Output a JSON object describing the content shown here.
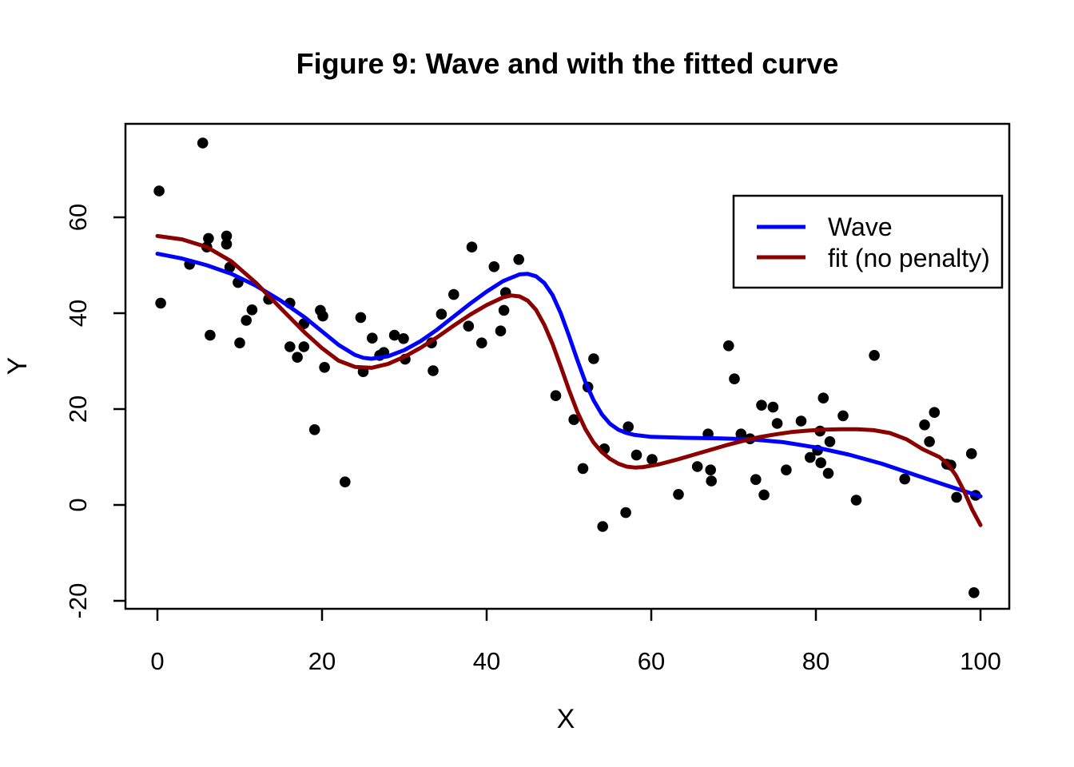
{
  "chart_data": {
    "type": "scatter",
    "title": "Figure 9: Wave and with the fitted curve",
    "xlabel": "X",
    "ylabel": "Y",
    "x_ticks": [
      0,
      20,
      40,
      60,
      80,
      100
    ],
    "y_ticks": [
      -20,
      0,
      20,
      40,
      60
    ],
    "xlim": [
      -3.9,
      103.5
    ],
    "ylim": [
      -21.7,
      79.5
    ],
    "grid": false,
    "point_color": "#000000",
    "background_color": "#ffffff",
    "points": [
      [
        0.2,
        65.5
      ],
      [
        0.4,
        42.1
      ],
      [
        3.9,
        50.2
      ],
      [
        5.5,
        75.5
      ],
      [
        6.0,
        53.8
      ],
      [
        6.2,
        55.6
      ],
      [
        6.4,
        35.4
      ],
      [
        8.4,
        56.1
      ],
      [
        8.4,
        54.4
      ],
      [
        8.8,
        49.6
      ],
      [
        9.8,
        46.4
      ],
      [
        10.0,
        33.8
      ],
      [
        10.8,
        38.5
      ],
      [
        11.5,
        40.7
      ],
      [
        13.5,
        42.9
      ],
      [
        16.1,
        42.1
      ],
      [
        16.1,
        33.0
      ],
      [
        17.0,
        30.8
      ],
      [
        17.8,
        37.8
      ],
      [
        17.8,
        33.0
      ],
      [
        19.1,
        15.7
      ],
      [
        19.8,
        40.6
      ],
      [
        20.1,
        39.4
      ],
      [
        20.3,
        28.7
      ],
      [
        22.8,
        4.8
      ],
      [
        24.7,
        39.1
      ],
      [
        25.0,
        27.8
      ],
      [
        26.1,
        34.8
      ],
      [
        27.0,
        31.2
      ],
      [
        27.5,
        31.8
      ],
      [
        28.8,
        35.4
      ],
      [
        29.9,
        34.7
      ],
      [
        30.1,
        30.4
      ],
      [
        33.3,
        33.8
      ],
      [
        33.5,
        28.0
      ],
      [
        34.5,
        39.8
      ],
      [
        36.0,
        43.9
      ],
      [
        37.8,
        37.3
      ],
      [
        38.2,
        53.8
      ],
      [
        39.4,
        33.8
      ],
      [
        40.9,
        49.7
      ],
      [
        41.7,
        36.3
      ],
      [
        42.1,
        40.6
      ],
      [
        42.3,
        44.3
      ],
      [
        43.9,
        51.2
      ],
      [
        48.4,
        22.8
      ],
      [
        50.6,
        17.8
      ],
      [
        51.7,
        7.6
      ],
      [
        52.3,
        24.6
      ],
      [
        53.0,
        30.5
      ],
      [
        54.1,
        -4.5
      ],
      [
        54.3,
        11.7
      ],
      [
        56.9,
        -1.6
      ],
      [
        57.2,
        16.3
      ],
      [
        58.2,
        10.4
      ],
      [
        60.1,
        9.5
      ],
      [
        63.3,
        2.2
      ],
      [
        65.6,
        8.0
      ],
      [
        66.9,
        14.8
      ],
      [
        67.2,
        7.3
      ],
      [
        67.3,
        5.0
      ],
      [
        69.4,
        33.2
      ],
      [
        70.1,
        26.3
      ],
      [
        70.9,
        14.8
      ],
      [
        72.0,
        13.8
      ],
      [
        72.7,
        5.3
      ],
      [
        73.4,
        20.8
      ],
      [
        73.7,
        2.1
      ],
      [
        74.8,
        20.4
      ],
      [
        75.3,
        17.0
      ],
      [
        76.4,
        7.3
      ],
      [
        78.2,
        17.5
      ],
      [
        79.3,
        9.9
      ],
      [
        80.2,
        11.4
      ],
      [
        80.5,
        15.4
      ],
      [
        80.6,
        8.8
      ],
      [
        80.9,
        22.3
      ],
      [
        81.5,
        6.6
      ],
      [
        81.7,
        13.2
      ],
      [
        83.3,
        18.6
      ],
      [
        84.9,
        1.0
      ],
      [
        87.1,
        31.2
      ],
      [
        90.8,
        5.4
      ],
      [
        93.2,
        16.7
      ],
      [
        93.8,
        13.2
      ],
      [
        94.4,
        19.3
      ],
      [
        95.9,
        8.5
      ],
      [
        96.4,
        8.3
      ],
      [
        97.1,
        1.6
      ],
      [
        98.9,
        10.7
      ],
      [
        99.2,
        -18.3
      ],
      [
        99.4,
        2.0
      ]
    ],
    "series": [
      {
        "name": "Wave",
        "color": "#0000FF",
        "points": [
          [
            0,
            52.4
          ],
          [
            3,
            51.4
          ],
          [
            6,
            50.0
          ],
          [
            9,
            48.2
          ],
          [
            12,
            45.7
          ],
          [
            15,
            42.6
          ],
          [
            18,
            39.0
          ],
          [
            20,
            36.2
          ],
          [
            22,
            33.4
          ],
          [
            24,
            31.3
          ],
          [
            25,
            30.7
          ],
          [
            26,
            30.5
          ],
          [
            28,
            31.0
          ],
          [
            30,
            32.3
          ],
          [
            32,
            34.2
          ],
          [
            34,
            36.6
          ],
          [
            36,
            39.3
          ],
          [
            38,
            42.0
          ],
          [
            40,
            44.5
          ],
          [
            42,
            46.7
          ],
          [
            44,
            48.1
          ],
          [
            45,
            48.2
          ],
          [
            46,
            47.7
          ],
          [
            47,
            46.3
          ],
          [
            48,
            43.8
          ],
          [
            49,
            40.0
          ],
          [
            50,
            35.3
          ],
          [
            51,
            30.3
          ],
          [
            52,
            25.6
          ],
          [
            53,
            21.8
          ],
          [
            54,
            18.9
          ],
          [
            55,
            16.9
          ],
          [
            56,
            15.7
          ],
          [
            57,
            15.0
          ],
          [
            58,
            14.6
          ],
          [
            60,
            14.2
          ],
          [
            64,
            14.0
          ],
          [
            68,
            13.9
          ],
          [
            72,
            13.7
          ],
          [
            76,
            13.1
          ],
          [
            80,
            12.0
          ],
          [
            84,
            10.5
          ],
          [
            88,
            8.6
          ],
          [
            92,
            6.3
          ],
          [
            96,
            4.0
          ],
          [
            100,
            1.8
          ]
        ]
      },
      {
        "name": "fit (no penalty)",
        "color": "#8B0000",
        "points": [
          [
            0,
            56.1
          ],
          [
            3,
            55.4
          ],
          [
            6,
            53.8
          ],
          [
            9,
            50.8
          ],
          [
            12,
            46.3
          ],
          [
            15,
            41.0
          ],
          [
            18,
            35.8
          ],
          [
            20,
            32.7
          ],
          [
            22,
            30.1
          ],
          [
            24,
            28.8
          ],
          [
            26,
            28.6
          ],
          [
            28,
            29.4
          ],
          [
            30,
            30.9
          ],
          [
            32,
            32.8
          ],
          [
            34,
            35.0
          ],
          [
            36,
            37.4
          ],
          [
            38,
            39.7
          ],
          [
            40,
            41.7
          ],
          [
            42,
            43.3
          ],
          [
            43,
            43.7
          ],
          [
            44,
            43.5
          ],
          [
            45,
            42.6
          ],
          [
            46,
            40.7
          ],
          [
            47,
            37.6
          ],
          [
            48,
            33.6
          ],
          [
            49,
            28.9
          ],
          [
            50,
            24.0
          ],
          [
            51,
            19.5
          ],
          [
            52,
            15.8
          ],
          [
            53,
            13.0
          ],
          [
            54,
            11.0
          ],
          [
            55,
            9.6
          ],
          [
            56,
            8.6
          ],
          [
            57,
            8.0
          ],
          [
            58,
            7.8
          ],
          [
            59,
            7.9
          ],
          [
            61,
            8.5
          ],
          [
            63,
            9.4
          ],
          [
            65,
            10.4
          ],
          [
            67,
            11.4
          ],
          [
            69,
            12.4
          ],
          [
            71,
            13.3
          ],
          [
            73,
            14.1
          ],
          [
            75,
            14.7
          ],
          [
            77,
            15.2
          ],
          [
            79,
            15.5
          ],
          [
            81,
            15.7
          ],
          [
            83,
            15.8
          ],
          [
            85,
            15.8
          ],
          [
            87,
            15.6
          ],
          [
            89,
            15.0
          ],
          [
            91,
            13.7
          ],
          [
            93,
            11.6
          ],
          [
            95,
            10.0
          ],
          [
            96,
            8.6
          ],
          [
            97,
            6.2
          ],
          [
            98,
            2.9
          ],
          [
            99,
            -1.0
          ],
          [
            100,
            -4.2
          ]
        ]
      }
    ],
    "legend": {
      "position": "top-right",
      "entries": [
        "Wave",
        "fit (no penalty)"
      ]
    }
  }
}
